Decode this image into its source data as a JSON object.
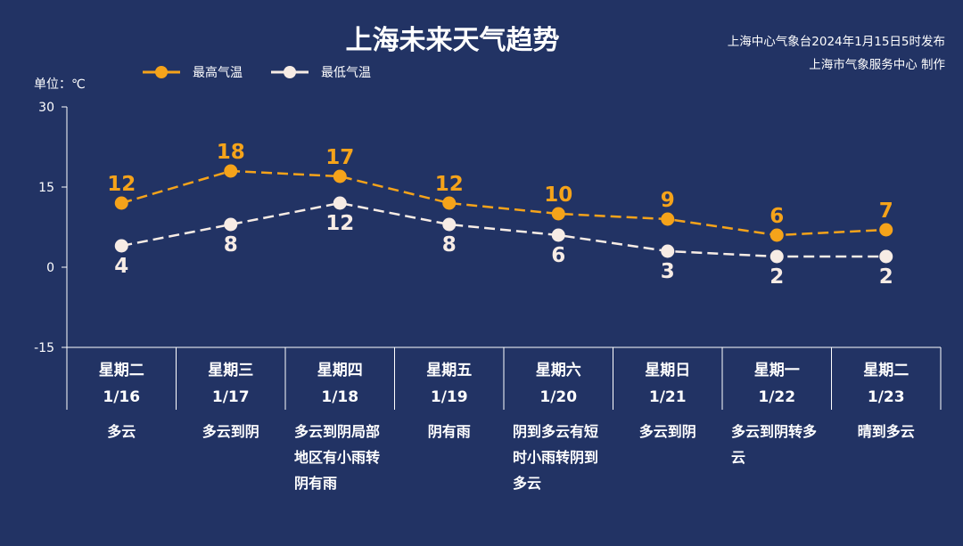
{
  "title": "上海未来天气趋势",
  "source": {
    "line1": "上海中心气象台2024年1月15日5时发布",
    "line2": "上海市气象服务中心 制作"
  },
  "unit_label": "单位：℃",
  "colors": {
    "background": "#223364",
    "high": "#f5a31a",
    "low": "#f7ece5",
    "axis": "#ffffff"
  },
  "chart_data": {
    "type": "line",
    "title": "上海未来天气趋势",
    "ylabel": "单位：℃",
    "ylim": [
      -15,
      30
    ],
    "yticks": [
      30,
      15,
      0,
      -15
    ],
    "grid": false,
    "legend_position": "top-left",
    "categories": [
      "星期二 1/16",
      "星期三 1/17",
      "星期四 1/18",
      "星期五 1/19",
      "星期六 1/20",
      "星期日 1/21",
      "星期一 1/22",
      "星期二 1/23"
    ],
    "series": [
      {
        "name": "最高气温",
        "values": [
          12,
          18,
          17,
          12,
          10,
          9,
          6,
          7
        ],
        "style": "dashed"
      },
      {
        "name": "最低气温",
        "values": [
          4,
          8,
          12,
          8,
          6,
          3,
          2,
          2
        ],
        "style": "dashed"
      }
    ]
  },
  "days": [
    {
      "weekday": "星期二",
      "date": "1/16",
      "weather": "多云"
    },
    {
      "weekday": "星期三",
      "date": "1/17",
      "weather": "多云到阴"
    },
    {
      "weekday": "星期四",
      "date": "1/18",
      "weather": "多云到阴局部地区有小雨转阴有雨"
    },
    {
      "weekday": "星期五",
      "date": "1/19",
      "weather": "阴有雨"
    },
    {
      "weekday": "星期六",
      "date": "1/20",
      "weather": "阴到多云有短时小雨转阴到多云"
    },
    {
      "weekday": "星期日",
      "date": "1/21",
      "weather": "多云到阴"
    },
    {
      "weekday": "星期一",
      "date": "1/22",
      "weather": "多云到阴转多云"
    },
    {
      "weekday": "星期二",
      "date": "1/23",
      "weather": "晴到多云"
    }
  ]
}
